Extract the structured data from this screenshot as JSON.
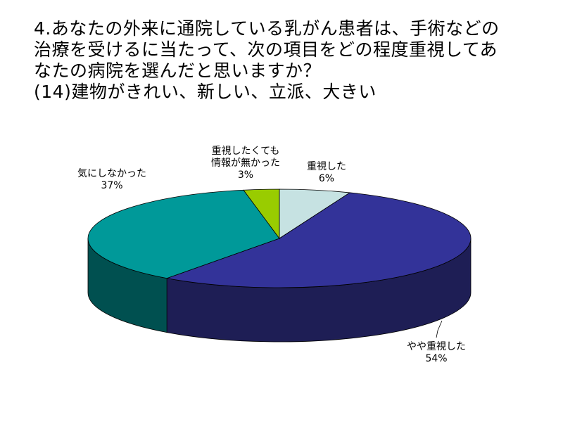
{
  "title_lines": [
    "4.あなたの外来に通院している乳がん患者は、手術などの",
    "治療を受けるに当たって、次の項目をどの程度重視してあ",
    "なたの病院を選んだと思いますか？",
    "(14)建物がきれい、新しい、立派、大きい"
  ],
  "chart_data": {
    "type": "pie",
    "categories": [
      "重視した",
      "やや重視した",
      "気にしなかった",
      "重視したくても情報が無かった"
    ],
    "values": [
      6,
      54,
      37,
      3
    ],
    "labels": [
      {
        "lines": [
          "重視した"
        ],
        "pct": "6%"
      },
      {
        "lines": [
          "やや重視した"
        ],
        "pct": "54%"
      },
      {
        "lines": [
          "気にしなかった"
        ],
        "pct": "37%"
      },
      {
        "lines": [
          "重視したくても",
          "情報が無かった"
        ],
        "pct": "3%"
      }
    ],
    "colors": {
      "top": [
        "#c6e2e2",
        "#333399",
        "#009999",
        "#99cc00"
      ],
      "side": [
        "#8aa8a8",
        "#1e1e55",
        "#005050",
        "#5f7f00"
      ]
    },
    "style": "3d"
  }
}
